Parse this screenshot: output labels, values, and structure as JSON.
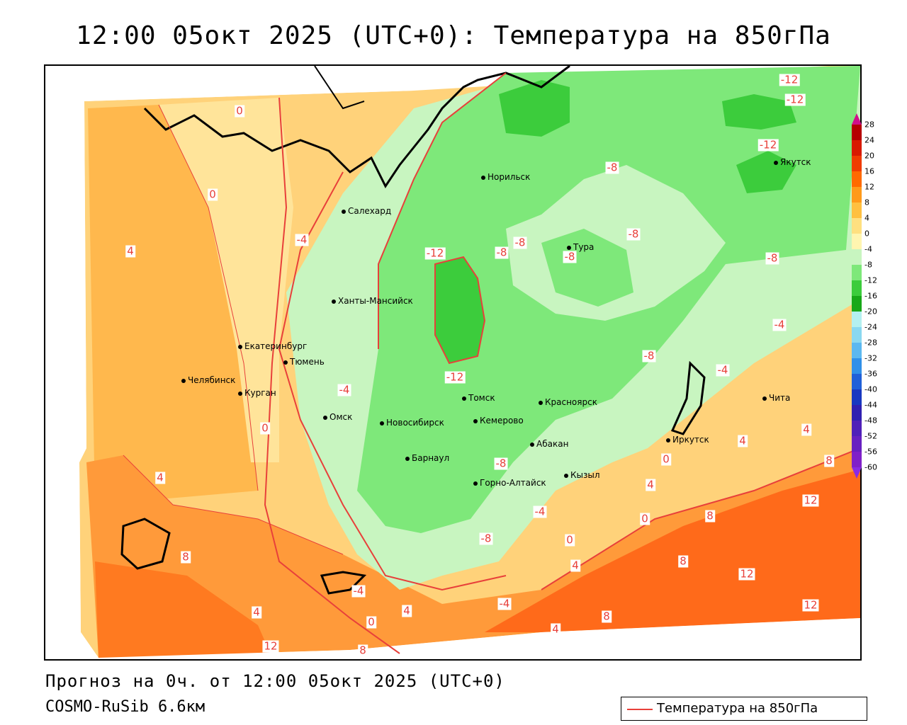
{
  "title": "12:00 05окт 2025 (UTC+0): Температура на 850гПа",
  "footer": {
    "forecast": "Прогноз на 0ч. от 12:00 05окт 2025 (UTC+0)",
    "model": "COSMO-RuSib 6.6км"
  },
  "series_legend": {
    "label": "Температура на 850гПа",
    "color": "#e8403a"
  },
  "colorbar": {
    "ticks": [
      "28",
      "24",
      "20",
      "16",
      "12",
      "8",
      "4",
      "0",
      "-4",
      "-8",
      "-12",
      "-16",
      "-20",
      "-24",
      "-28",
      "-32",
      "-36",
      "-40",
      "-44",
      "-48",
      "-52",
      "-56",
      "-60"
    ],
    "colors": [
      "#b50000",
      "#d81a00",
      "#f03c00",
      "#ff6a00",
      "#ff9a1a",
      "#ffc040",
      "#ffe080",
      "#fff5b0",
      "#c8f5c0",
      "#7ee87a",
      "#3ccc3c",
      "#18a818",
      "#b4f0f0",
      "#8ad8f0",
      "#5cb8f0",
      "#3090e8",
      "#2060d8",
      "#1838c0",
      "#3020b0",
      "#5020b8",
      "#6820c0",
      "#8020c8"
    ],
    "top_color": "#d0108a",
    "bottom_color": "#8a2be2"
  },
  "cities": [
    {
      "name": "Норильск"
    },
    {
      "name": "Якутск"
    },
    {
      "name": "Салехард"
    },
    {
      "name": "Тура"
    },
    {
      "name": "Ханты-Мансийск"
    },
    {
      "name": "Екатеринбург"
    },
    {
      "name": "Тюмень"
    },
    {
      "name": "Челябинск"
    },
    {
      "name": "Курган"
    },
    {
      "name": "Омск"
    },
    {
      "name": "Новосибирск"
    },
    {
      "name": "Томск"
    },
    {
      "name": "Кемерово"
    },
    {
      "name": "Красноярск"
    },
    {
      "name": "Абакан"
    },
    {
      "name": "Барнаул"
    },
    {
      "name": "Горно-Алтайск"
    },
    {
      "name": "Кызыл"
    },
    {
      "name": "Иркутск"
    },
    {
      "name": "Чита"
    }
  ],
  "contour_labels": [
    "-12",
    "-12",
    "-12",
    "-12",
    "-12",
    "-8",
    "-8",
    "-8",
    "-8",
    "-8",
    "-8",
    "-8",
    "-8",
    "-8",
    "-4",
    "-4",
    "-4",
    "-4",
    "-4",
    "-4",
    "-4",
    "0",
    "0",
    "0",
    "0",
    "0",
    "0",
    "0",
    "4",
    "4",
    "4",
    "4",
    "4",
    "4",
    "4",
    "4",
    "4",
    "8",
    "8",
    "8",
    "8",
    "8",
    "8",
    "12",
    "12",
    "12",
    "12"
  ]
}
